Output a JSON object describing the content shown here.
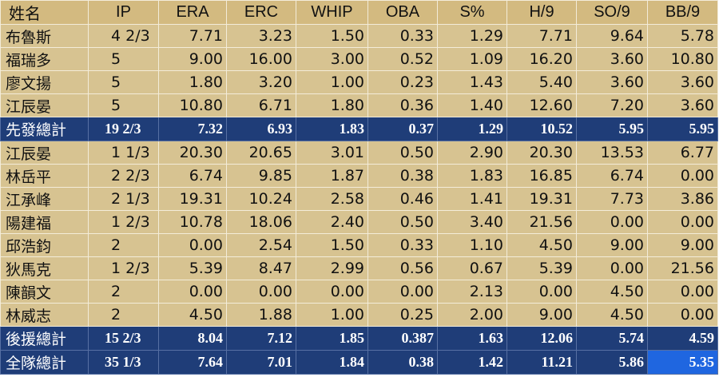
{
  "headers": [
    "姓名",
    "IP",
    "ERA",
    "ERC",
    "WHIP",
    "OBA",
    "S%",
    "H/9",
    "SO/9",
    "BB/9"
  ],
  "starters": [
    {
      "name": "布魯斯",
      "ip": "4 2/3",
      "era": "7.71",
      "erc": "3.23",
      "whip": "1.50",
      "oba": "0.33",
      "s_pct": "1.29",
      "h9": "7.71",
      "so9": "9.64",
      "bb9": "5.78"
    },
    {
      "name": "福瑞多",
      "ip": "5",
      "era": "9.00",
      "erc": "16.00",
      "whip": "3.00",
      "oba": "0.52",
      "s_pct": "1.09",
      "h9": "16.20",
      "so9": "3.60",
      "bb9": "10.80"
    },
    {
      "name": "廖文揚",
      "ip": "5",
      "era": "1.80",
      "erc": "3.20",
      "whip": "1.00",
      "oba": "0.23",
      "s_pct": "1.43",
      "h9": "5.40",
      "so9": "3.60",
      "bb9": "3.60"
    },
    {
      "name": "江辰晏",
      "ip": "5",
      "era": "10.80",
      "erc": "6.71",
      "whip": "1.80",
      "oba": "0.36",
      "s_pct": "1.40",
      "h9": "12.60",
      "so9": "7.20",
      "bb9": "3.60"
    }
  ],
  "starter_total": {
    "name": "先發總計",
    "ip": "19 2/3",
    "era": "7.32",
    "erc": "6.93",
    "whip": "1.83",
    "oba": "0.37",
    "s_pct": "1.29",
    "h9": "10.52",
    "so9": "5.95",
    "bb9": "5.95"
  },
  "relievers": [
    {
      "name": "江辰晏",
      "ip": "1 1/3",
      "era": "20.30",
      "erc": "20.65",
      "whip": "3.01",
      "oba": "0.50",
      "s_pct": "2.90",
      "h9": "20.30",
      "so9": "13.53",
      "bb9": "6.77"
    },
    {
      "name": "林岳平",
      "ip": "2 2/3",
      "era": "6.74",
      "erc": "9.85",
      "whip": "1.87",
      "oba": "0.38",
      "s_pct": "1.83",
      "h9": "16.85",
      "so9": "6.74",
      "bb9": "0.00"
    },
    {
      "name": "江承峰",
      "ip": "2 1/3",
      "era": "19.31",
      "erc": "10.24",
      "whip": "2.58",
      "oba": "0.46",
      "s_pct": "1.41",
      "h9": "19.31",
      "so9": "7.73",
      "bb9": "3.86"
    },
    {
      "name": "陽建福",
      "ip": "1 2/3",
      "era": "10.78",
      "erc": "18.06",
      "whip": "2.40",
      "oba": "0.50",
      "s_pct": "3.40",
      "h9": "21.56",
      "so9": "0.00",
      "bb9": "0.00"
    },
    {
      "name": "邱浩鈞",
      "ip": "2",
      "era": "0.00",
      "erc": "2.54",
      "whip": "1.50",
      "oba": "0.33",
      "s_pct": "1.10",
      "h9": "4.50",
      "so9": "9.00",
      "bb9": "9.00"
    },
    {
      "name": "狄馬克",
      "ip": "1 2/3",
      "era": "5.39",
      "erc": "8.47",
      "whip": "2.99",
      "oba": "0.56",
      "s_pct": "0.67",
      "h9": "5.39",
      "so9": "0.00",
      "bb9": "21.56"
    },
    {
      "name": "陳韻文",
      "ip": "2",
      "era": "0.00",
      "erc": "0.00",
      "whip": "0.00",
      "oba": "0.00",
      "s_pct": "2.13",
      "h9": "0.00",
      "so9": "4.50",
      "bb9": "0.00"
    },
    {
      "name": "林威志",
      "ip": "2",
      "era": "4.50",
      "erc": "1.88",
      "whip": "1.00",
      "oba": "0.25",
      "s_pct": "2.00",
      "h9": "9.00",
      "so9": "4.50",
      "bb9": "0.00"
    }
  ],
  "reliever_total": {
    "name": "後援總計",
    "ip": "15 2/3",
    "era": "8.04",
    "erc": "7.12",
    "whip": "1.85",
    "oba": "0.387",
    "s_pct": "1.63",
    "h9": "12.06",
    "so9": "5.74",
    "bb9": "4.59"
  },
  "team_total": {
    "name": "全隊總計",
    "ip": "35 1/3",
    "era": "7.64",
    "erc": "7.01",
    "whip": "1.84",
    "oba": "0.38",
    "s_pct": "1.42",
    "h9": "11.21",
    "so9": "5.86",
    "bb9": "5.35"
  },
  "colors": {
    "row_bg": "#d7c391",
    "total_bg": "#1f3d78",
    "selected_cell_bg": "#1f66e0"
  }
}
